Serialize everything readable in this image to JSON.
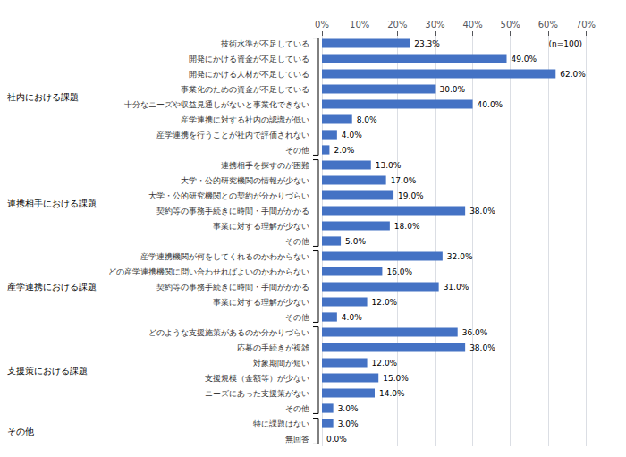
{
  "chart_data": {
    "type": "bar",
    "orientation": "horizontal",
    "categories": [
      "技術水準が不足している",
      "開発にかける資金が不足している",
      "開発にかける人材が不足している",
      "事業化のための資金が不足している",
      "十分なニーズや収益見通しがないと事業化できない",
      "産学連携に対する社内の認識が低い",
      "産学連携を行うことが社内で評価されない",
      "その他",
      "連携相手を探すのが困難",
      "大学・公的研究機関の情報が少ない",
      "大学・公的研究機関との契約が分かりづらい",
      "契約等の事務手続きに時間・手間がかかる",
      "事業に対する理解が少ない",
      "その他",
      "産学連携機関が何をしてくれるのかわからない",
      "どの産学連携機関に問い合わせればよいのかわからない",
      "契約等の事務手続きに時間・手間がかかる",
      "事業に対する理解が少ない",
      "その他",
      "どのような支援施策があるのか分かりづらい",
      "応募の手続きが複雑",
      "対象期間が短い",
      "支援規模（金額等）が少ない",
      "ニーズにあった支援策がない",
      "その他",
      "特に課題はない",
      "無回答"
    ],
    "values": [
      23.3,
      49.0,
      62.0,
      30.0,
      40.0,
      8.0,
      4.0,
      2.0,
      13.0,
      17.0,
      19.0,
      38.0,
      18.0,
      5.0,
      32.0,
      16.0,
      31.0,
      12.0,
      4.0,
      36.0,
      38.0,
      12.0,
      15.0,
      14.0,
      3.0,
      3.0,
      0.0
    ],
    "value_labels": [
      "23.3%",
      "49.0%",
      "62.0%",
      "30.0%",
      "40.0%",
      "8.0%",
      "4.0%",
      "2.0%",
      "13.0%",
      "17.0%",
      "19.0%",
      "38.0%",
      "18.0%",
      "5.0%",
      "32.0%",
      "16.0%",
      "31.0%",
      "12.0%",
      "4.0%",
      "36.0%",
      "38.0%",
      "12.0%",
      "15.0%",
      "14.0%",
      "3.0%",
      "3.0%",
      "0.0%"
    ],
    "data_labels": true,
    "color": "#4472c4",
    "xlim": [
      0,
      70
    ],
    "xticks": [
      {
        "value": 0,
        "label": "0%"
      },
      {
        "value": 10,
        "label": "10%"
      },
      {
        "value": 20,
        "label": "20%"
      },
      {
        "value": 30,
        "label": "30%"
      },
      {
        "value": 40,
        "label": "40%"
      },
      {
        "value": 50,
        "label": "50%"
      },
      {
        "value": 60,
        "label": "60%"
      },
      {
        "value": 70,
        "label": "70%"
      }
    ],
    "grid": true,
    "annotation": "(n=100)",
    "groups": [
      {
        "label": "社内における課題",
        "start": 0,
        "end": 7
      },
      {
        "label": "連携相手における課題",
        "start": 8,
        "end": 13
      },
      {
        "label": "産学連携における課題",
        "start": 14,
        "end": 18
      },
      {
        "label": "支援策における課題",
        "start": 19,
        "end": 24
      },
      {
        "label": "その他",
        "start": 25,
        "end": 26
      }
    ]
  }
}
